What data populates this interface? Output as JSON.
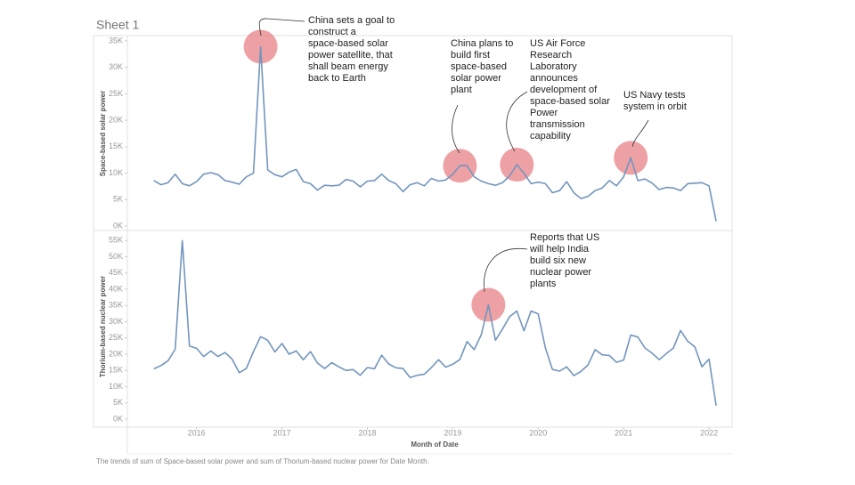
{
  "sheet_title": "Sheet 1",
  "caption": "The trends of sum of Space-based solar power and sum of Thorium-based nuclear power for Date Month.",
  "chart_data": [
    {
      "type": "line",
      "y_label": "Space-based solar power",
      "color": "#7395bd",
      "x": [
        "2015-07",
        "2015-08",
        "2015-09",
        "2015-10",
        "2015-11",
        "2015-12",
        "2016-01",
        "2016-02",
        "2016-03",
        "2016-04",
        "2016-05",
        "2016-06",
        "2016-07",
        "2016-08",
        "2016-09",
        "2016-10",
        "2016-11",
        "2016-12",
        "2017-01",
        "2017-02",
        "2017-03",
        "2017-04",
        "2017-05",
        "2017-06",
        "2017-07",
        "2017-08",
        "2017-09",
        "2017-10",
        "2017-11",
        "2017-12",
        "2018-01",
        "2018-02",
        "2018-03",
        "2018-04",
        "2018-05",
        "2018-06",
        "2018-07",
        "2018-08",
        "2018-09",
        "2018-10",
        "2018-11",
        "2018-12",
        "2019-01",
        "2019-02",
        "2019-03",
        "2019-04",
        "2019-05",
        "2019-06",
        "2019-07",
        "2019-08",
        "2019-09",
        "2019-10",
        "2019-11",
        "2019-12",
        "2020-01",
        "2020-02",
        "2020-03",
        "2020-04",
        "2020-05",
        "2020-06",
        "2020-07",
        "2020-08",
        "2020-09",
        "2020-10",
        "2020-11",
        "2020-12",
        "2021-01",
        "2021-02",
        "2021-03",
        "2021-04",
        "2021-05",
        "2021-06",
        "2021-07",
        "2021-08",
        "2021-09",
        "2021-10",
        "2021-11",
        "2021-12",
        "2022-01",
        "2022-02"
      ],
      "values": [
        8600,
        7800,
        8200,
        9800,
        8000,
        7600,
        8400,
        9800,
        10100,
        9700,
        8600,
        8300,
        7900,
        9300,
        10000,
        33900,
        10600,
        9700,
        9300,
        10200,
        10700,
        8400,
        8000,
        6800,
        7700,
        7600,
        7700,
        8800,
        8500,
        7400,
        8500,
        8600,
        9800,
        8600,
        8000,
        6500,
        7800,
        8200,
        7600,
        9000,
        8500,
        8700,
        9800,
        11400,
        11400,
        9300,
        8500,
        8000,
        7700,
        8200,
        9500,
        11600,
        10000,
        8000,
        8300,
        8000,
        6300,
        6700,
        8400,
        6300,
        5200,
        5600,
        6700,
        7200,
        8600,
        7600,
        9300,
        12900,
        8600,
        8900,
        8100,
        6900,
        7300,
        7200,
        6700,
        8000,
        8100,
        8200,
        7600,
        900
      ],
      "xlim": [
        2015.19,
        2022.27
      ],
      "ylim": [
        0,
        36000
      ],
      "yticks": [
        {
          "value": 0,
          "label": "0K"
        },
        {
          "value": 5000,
          "label": "5K"
        },
        {
          "value": 10000,
          "label": "10K"
        },
        {
          "value": 15000,
          "label": "15K"
        },
        {
          "value": 20000,
          "label": "20K"
        },
        {
          "value": 25000,
          "label": "25K"
        },
        {
          "value": 30000,
          "label": "30K"
        },
        {
          "value": 35000,
          "label": "35K"
        }
      ],
      "grid": false,
      "annotations": [
        {
          "text": [
            "China sets a goal to",
            "construct a",
            "space-based solar",
            "power satellite, that",
            "shall beam energy",
            "back to Earth"
          ]
        },
        {
          "text": [
            "China plans to",
            "build first",
            "space-based",
            "solar power",
            "plant"
          ]
        },
        {
          "text": [
            "US Air Force",
            "Research",
            "Laboratory",
            "announces",
            "development of",
            "space-based solar",
            "Power",
            "transmission",
            "capability"
          ]
        },
        {
          "text": [
            "US Navy tests",
            "system in orbit"
          ]
        }
      ]
    },
    {
      "type": "line",
      "y_label": "Thorium-based nuclear power",
      "x_label": "Month of Date",
      "color": "#7395bd",
      "x": [
        "2015-07",
        "2015-08",
        "2015-09",
        "2015-10",
        "2015-11",
        "2015-12",
        "2016-01",
        "2016-02",
        "2016-03",
        "2016-04",
        "2016-05",
        "2016-06",
        "2016-07",
        "2016-08",
        "2016-09",
        "2016-10",
        "2016-11",
        "2016-12",
        "2017-01",
        "2017-02",
        "2017-03",
        "2017-04",
        "2017-05",
        "2017-06",
        "2017-07",
        "2017-08",
        "2017-09",
        "2017-10",
        "2017-11",
        "2017-12",
        "2018-01",
        "2018-02",
        "2018-03",
        "2018-04",
        "2018-05",
        "2018-06",
        "2018-07",
        "2018-08",
        "2018-09",
        "2018-10",
        "2018-11",
        "2018-12",
        "2019-01",
        "2019-02",
        "2019-03",
        "2019-04",
        "2019-05",
        "2019-06",
        "2019-07",
        "2019-08",
        "2019-09",
        "2019-10",
        "2019-11",
        "2019-12",
        "2020-01",
        "2020-02",
        "2020-03",
        "2020-04",
        "2020-05",
        "2020-06",
        "2020-07",
        "2020-08",
        "2020-09",
        "2020-10",
        "2020-11",
        "2020-12",
        "2021-01",
        "2021-02",
        "2021-03",
        "2021-04",
        "2021-05",
        "2021-06",
        "2021-07",
        "2021-08",
        "2021-09",
        "2021-10",
        "2021-11",
        "2021-12",
        "2022-01",
        "2022-02"
      ],
      "values": [
        15500,
        16500,
        18000,
        21500,
        55000,
        22500,
        21800,
        19300,
        21000,
        19300,
        20500,
        18500,
        14300,
        15600,
        20800,
        25400,
        24300,
        20700,
        23300,
        20000,
        21000,
        18300,
        20800,
        17300,
        15600,
        17400,
        16100,
        15000,
        15300,
        13500,
        15900,
        15500,
        19700,
        17000,
        15800,
        15600,
        12800,
        13500,
        13800,
        15900,
        18300,
        16000,
        16900,
        18400,
        23900,
        21400,
        26000,
        35200,
        24300,
        27800,
        31600,
        33300,
        27200,
        33300,
        32400,
        22000,
        15300,
        14800,
        16100,
        13400,
        14700,
        16700,
        21400,
        19800,
        19600,
        17500,
        18200,
        25900,
        25300,
        21900,
        20300,
        18300,
        20200,
        21900,
        27300,
        24000,
        22300,
        16100,
        18500,
        4200
      ],
      "xlim": [
        2015.19,
        2022.27
      ],
      "ylim": [
        0,
        57000
      ],
      "yticks": [
        {
          "value": 0,
          "label": "0K"
        },
        {
          "value": 5000,
          "label": "5K"
        },
        {
          "value": 10000,
          "label": "10K"
        },
        {
          "value": 15000,
          "label": "15K"
        },
        {
          "value": 20000,
          "label": "20K"
        },
        {
          "value": 25000,
          "label": "25K"
        },
        {
          "value": 30000,
          "label": "30K"
        },
        {
          "value": 35000,
          "label": "35K"
        },
        {
          "value": 40000,
          "label": "40K"
        },
        {
          "value": 45000,
          "label": "45K"
        },
        {
          "value": 50000,
          "label": "50K"
        },
        {
          "value": 55000,
          "label": "55K"
        }
      ],
      "xticks": [
        2016,
        2017,
        2018,
        2019,
        2020,
        2021,
        2022
      ],
      "grid": false,
      "annotations": [
        {
          "text": [
            "Reports that US",
            "will help India",
            "build six new",
            "nuclear power",
            "plants"
          ]
        }
      ]
    }
  ]
}
